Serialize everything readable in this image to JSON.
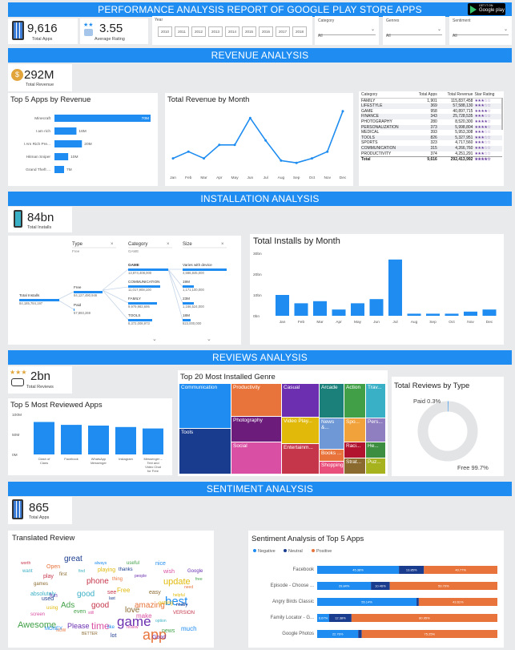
{
  "header": {
    "title": "PERFORMANCE ANALYSIS REPORT OF GOOGLE PLAY STORE APPS",
    "badge_top": "GET IT ON",
    "badge_bottom": "Google play"
  },
  "kpis": {
    "total_apps": {
      "value": "9,616",
      "label": "Total Apps"
    },
    "avg_rating": {
      "value": "3.55",
      "label": "Average Rating"
    },
    "total_revenue": {
      "value": "292M",
      "label": "Total Revenue"
    },
    "total_installs": {
      "value": "84bn",
      "label": "Total Installs"
    },
    "total_reviews": {
      "value": "2bn",
      "label": "Total Reviews"
    },
    "sentiment_apps": {
      "value": "865",
      "label": "Total Apps"
    }
  },
  "slicers": {
    "year": {
      "label": "Year",
      "years": [
        "2010",
        "2011",
        "2012",
        "2013",
        "2014",
        "2015",
        "2016",
        "2017",
        "2018"
      ]
    },
    "category": {
      "label": "Category",
      "value": "All"
    },
    "genres": {
      "label": "Genres",
      "value": "All"
    },
    "sentiment": {
      "label": "Sentiment",
      "value": "All"
    }
  },
  "sections": {
    "revenue": "REVENUE ANALYSIS",
    "installation": "INSTALLATION ANALYSIS",
    "reviews": "REVIEWS ANALYSIS",
    "sentiment": "SENTIMENT ANALYSIS"
  },
  "top5_revenue": {
    "title": "Top 5 Apps by Revenue",
    "apps": [
      "Minecraft",
      "I am rich",
      "I Am Rich Pre...",
      "Hitman Sniper",
      "Grand Theft ..."
    ],
    "labels": [
      "70M",
      "16M",
      "20M",
      "10M",
      "7M"
    ],
    "values": [
      70,
      16,
      20,
      10,
      7
    ]
  },
  "revenue_by_month": {
    "title": "Total Revenue by Month",
    "months": [
      "Jan",
      "Feb",
      "Mar",
      "Apr",
      "May",
      "Jun",
      "Jul",
      "Aug",
      "Sep",
      "Oct",
      "Nov",
      "Dec"
    ],
    "values": [
      3,
      6,
      3,
      9,
      9,
      21,
      11,
      2,
      1,
      3,
      6,
      24
    ]
  },
  "category_table": {
    "headers": [
      "Category",
      "Total Apps",
      "Total Revenue",
      "Star Rating"
    ],
    "rows": [
      [
        "FAMILY",
        "1,901",
        "115,837,458",
        "★★★☆☆"
      ],
      [
        "LIFESTYLE",
        "369",
        "57,588,130",
        "★★★☆☆"
      ],
      [
        "GAME",
        "958",
        "40,897,715",
        "★★★★☆"
      ],
      [
        "FINANCE",
        "343",
        "25,728,535",
        "★★★☆☆"
      ],
      [
        "PHOTOGRAPHY",
        "280",
        "8,520,300",
        "★★★★☆"
      ],
      [
        "PERSONALIZATION",
        "373",
        "5,998,804",
        "★★★★☆"
      ],
      [
        "MEDICAL",
        "393",
        "5,953,308",
        "★★★☆☆"
      ],
      [
        "TOOLS",
        "826",
        "5,327,951",
        "★★★☆☆"
      ],
      [
        "SPORTS",
        "323",
        "4,717,560",
        "★★★☆☆"
      ],
      [
        "COMMUNICATION",
        "315",
        "4,266,760",
        "★★★☆☆"
      ],
      [
        "PRODUCTIVITY",
        "374",
        "4,251,291",
        "★★★☆☆"
      ]
    ],
    "total": [
      "Total",
      "9,616",
      "292,413,992",
      "★★★★☆"
    ]
  },
  "decomposition": {
    "col_type": {
      "title": "Type",
      "sub": "Free"
    },
    "col_category": {
      "title": "Category",
      "sub": "GAME"
    },
    "col_size": {
      "title": "Size",
      "sub": ""
    },
    "root": {
      "label": "Total Installs",
      "value": "84,185,784,197"
    },
    "type_nodes": [
      {
        "label": "Free",
        "value": "84,127,490,946"
      },
      {
        "label": "Paid",
        "value": "57,893,269"
      }
    ],
    "category_nodes": [
      {
        "label": "GAME",
        "value": "13,874,408,000"
      },
      {
        "label": "COMMUNICATION",
        "value": "11,017,908,100"
      },
      {
        "label": "FAMILY",
        "value": "9,979,983,695"
      },
      {
        "label": "TOOLS",
        "value": "8,372,008,973"
      }
    ],
    "size_nodes": [
      {
        "label": "Varies with device",
        "value": "4,586,845,000"
      },
      {
        "label": "19M",
        "value": "1,171,100,000"
      },
      {
        "label": "23M",
        "value": "1,166,524,000"
      },
      {
        "label": "18M",
        "value": "823,000,000"
      }
    ]
  },
  "installs_by_month": {
    "title": "Total Installs by Month",
    "months": [
      "Jan",
      "Feb",
      "Mar",
      "Apr",
      "May",
      "Jun",
      "Jul",
      "Aug",
      "Sep",
      "Oct",
      "Nov",
      "Dec"
    ],
    "values": [
      10,
      6,
      7,
      3,
      6,
      8,
      27,
      1,
      1,
      1,
      2,
      3
    ],
    "yticks": [
      "30bn",
      "20bn",
      "10bn",
      "0bn"
    ]
  },
  "top5_reviewed": {
    "title": "Top 5 Most Reviewed Apps",
    "apps": [
      "Clash of Clans",
      "Facebook",
      "WhatsApp Messenger",
      "Instagram",
      "Messenger – Text and Video Chat for Free"
    ],
    "values": [
      45,
      41,
      40,
      38,
      36
    ],
    "yticks": [
      "100M",
      "50M",
      "0M"
    ]
  },
  "treemap": {
    "title": "Top 20 Most Installed Genre",
    "genres": [
      "Communication",
      "Tools",
      "Productivity",
      "Photography",
      "Social",
      "Casual",
      "Video Play...",
      "Entertainm...",
      "Arcade",
      "News &...",
      "Books ...",
      "Action",
      "Spo...",
      "Shopping",
      "Raci...",
      "Strat...",
      "Trav...",
      "Pers...",
      "He...",
      "Puz..."
    ]
  },
  "reviews_by_type": {
    "title": "Total Reviews by Type",
    "paid_label": "Paid 0.3%",
    "free_label": "Free 99.7%",
    "paid_pct": 0.3,
    "free_pct": 99.7
  },
  "wordcloud": {
    "title": "Translated Review",
    "words": [
      "game",
      "app",
      "best",
      "Awesome",
      "time",
      "update",
      "great",
      "phone",
      "good",
      "love",
      "Please",
      "amazing",
      "much",
      "Ads",
      "make",
      "Free",
      "really",
      "play",
      "option",
      "games",
      "fun",
      "need",
      "like",
      "even",
      "still",
      "using",
      "used",
      "good",
      "want",
      "easy",
      "people",
      "thing",
      "nice",
      "free",
      "screen",
      "playing",
      "last",
      "VERSION",
      "absolutely",
      "BETTER",
      "Google",
      "Open",
      "always",
      "useful",
      "wish",
      "helpful",
      "thanks",
      "see",
      "find",
      "first",
      "Good",
      "NOW",
      "MONEY",
      "news",
      "review",
      "getting",
      "lot",
      "worth"
    ]
  },
  "sentiment_top5": {
    "title": "Sentiment Analysis of Top 5 Apps",
    "legend": [
      "Negative",
      "Neutral",
      "Positive"
    ],
    "apps": [
      "Facebook",
      "Episode - Choose ...",
      "Angry Birds Classic",
      "Family Locator - G...",
      "Google Photos"
    ],
    "negative": [
      45.38,
      29.84,
      55.14,
      6.67,
      22.76
    ],
    "neutral": [
      13.85,
      10.46,
      1.25,
      12.38,
      1.99
    ],
    "positive": [
      40.77,
      59.7,
      43.61,
      80.95,
      75.25
    ],
    "neg_labels": [
      "45.38%",
      "29.84%",
      "55.14%",
      "6.67%",
      "22.76%"
    ],
    "neu_labels": [
      "13.85%",
      "10.46%",
      "",
      "12.38%",
      ""
    ],
    "pos_labels": [
      "40.77%",
      "59.70%",
      "43.61%",
      "80.95%",
      "75.25%"
    ]
  },
  "colors": {
    "band": "#1e8cf0",
    "bar_blue": "#1e8cf0",
    "navy": "#1a3c8f",
    "orange": "#e8743b",
    "purple_star": "#6a3fa0"
  }
}
